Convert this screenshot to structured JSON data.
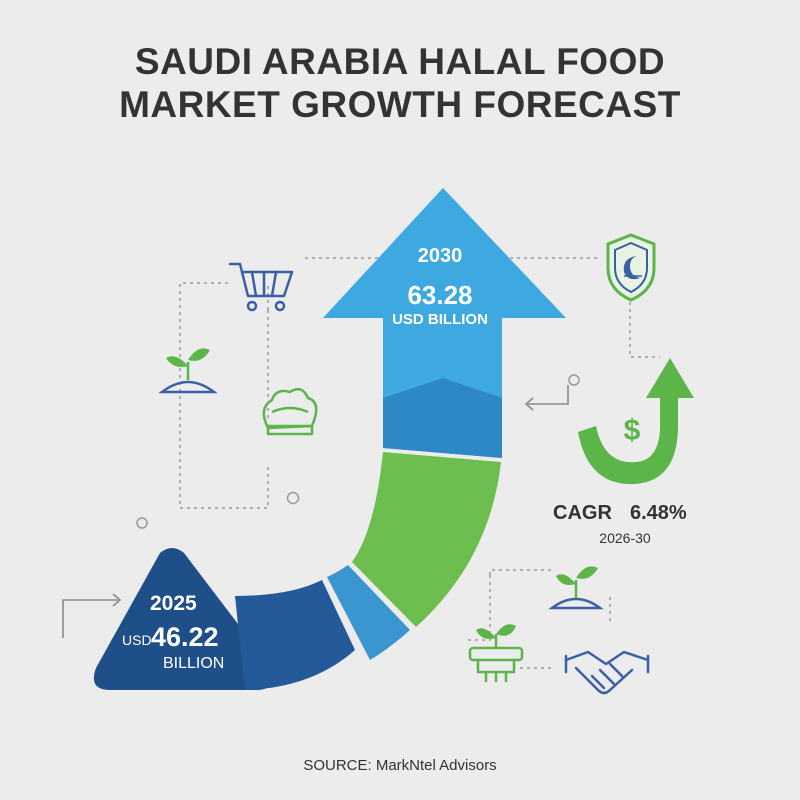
{
  "title": {
    "line1": "SAUDI ARABIA HALAL FOOD",
    "line2": "MARKET GROWTH FORECAST"
  },
  "forecast_2030": {
    "year": "2030",
    "value": "63.28",
    "unit": "USD BILLION"
  },
  "forecast_2025": {
    "year": "2025",
    "currency": "USD",
    "value": "46.22",
    "unit": "BILLION"
  },
  "cagr": {
    "label": "CAGR",
    "value": "6.48%",
    "period": "2026-30"
  },
  "source": "SOURCE: MarkNtel Advisors",
  "icons": [
    "shopping-cart-icon",
    "sprout-icon",
    "chef-hat-icon",
    "halal-shield-icon",
    "dollar-growth-icon",
    "sprout-icon",
    "produce-basket-icon",
    "handshake-icon"
  ],
  "colors": {
    "background": "#ececec",
    "arrow_blue_light": "#3ea8e0",
    "arrow_blue_mid": "#2e8ac9",
    "arrow_green": "#6cbf4e",
    "base_navy": "#1f4f88",
    "icon_blue": "#3b5fa6",
    "icon_green": "#5cb548"
  }
}
